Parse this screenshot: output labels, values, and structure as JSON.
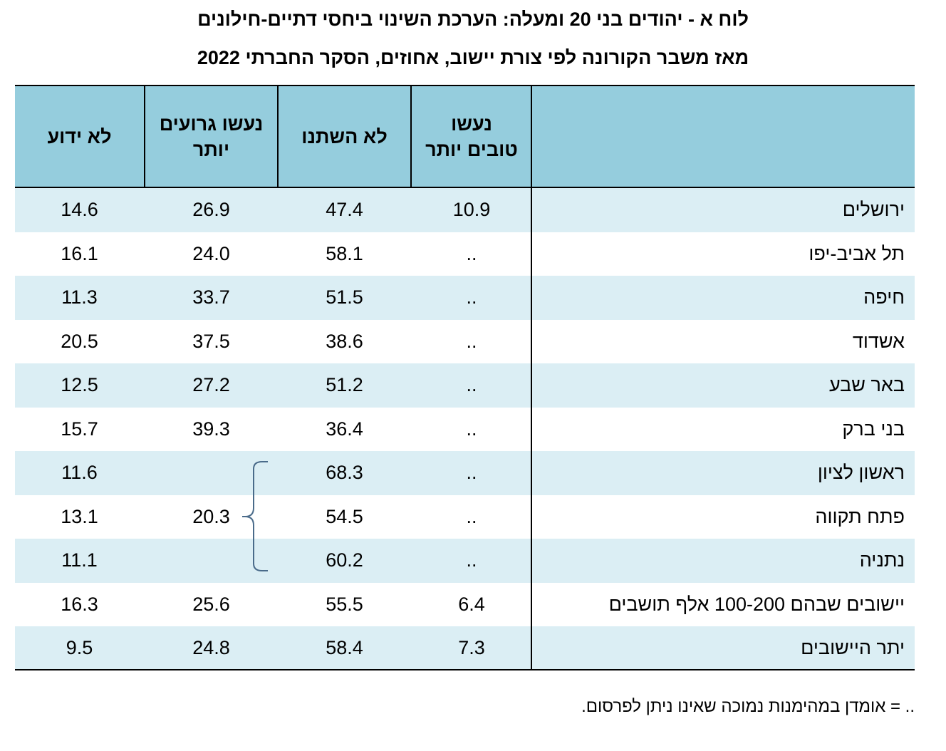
{
  "title_line1": "לוח א - יהודים בני 20 ומעלה: הערכת השינוי ביחסי דתיים-חילונים",
  "title_line2": "מאז משבר הקורונה  לפי צורת יישוב, אחוזים, הסקר החברתי 2022",
  "table": {
    "headers": {
      "better": "נעשו טובים יותר",
      "unchanged": "לא השתנו",
      "worse": "נעשו גרועים יותר",
      "unknown": "לא ידוע"
    },
    "rows": [
      {
        "name": "ירושלים",
        "better": "10.9",
        "unchanged": "47.4",
        "worse": "26.9",
        "unknown": "14.6"
      },
      {
        "name": "תל אביב-יפו",
        "better": "..",
        "unchanged": "58.1",
        "worse": "24.0",
        "unknown": "16.1"
      },
      {
        "name": "חיפה",
        "better": "..",
        "unchanged": "51.5",
        "worse": "33.7",
        "unknown": "11.3"
      },
      {
        "name": "אשדוד",
        "better": "..",
        "unchanged": "38.6",
        "worse": "37.5",
        "unknown": "20.5"
      },
      {
        "name": "באר שבע",
        "better": "..",
        "unchanged": "51.2",
        "worse": "27.2",
        "unknown": "12.5"
      },
      {
        "name": "בני ברק",
        "better": "..",
        "unchanged": "36.4",
        "worse": "39.3",
        "unknown": "15.7"
      },
      {
        "name": "ראשון לציון",
        "better": "..",
        "unchanged": "68.3",
        "worse": "",
        "unknown": "11.6"
      },
      {
        "name": "פתח תקווה",
        "better": "..",
        "unchanged": "54.5",
        "worse": "",
        "unknown": "13.1"
      },
      {
        "name": "נתניה",
        "better": "..",
        "unchanged": "60.2",
        "worse": "",
        "unknown": "11.1"
      },
      {
        "name": "יישובים שבהם 100-200 אלף תושבים",
        "better": "6.4",
        "unchanged": "55.5",
        "worse": "25.6",
        "unknown": "16.3"
      },
      {
        "name": "יתר היישובים",
        "better": "7.3",
        "unchanged": "58.4",
        "worse": "24.8",
        "unknown": "9.5"
      }
    ],
    "merged_worse_value": "20.3"
  },
  "footnote": ".. = אומדן במהימנות נמוכה שאינו ניתן לפרסום.",
  "colors": {
    "header_bg": "#95cddd",
    "row_shade": "#dbeef4",
    "bracket": "#4a6b8a"
  }
}
